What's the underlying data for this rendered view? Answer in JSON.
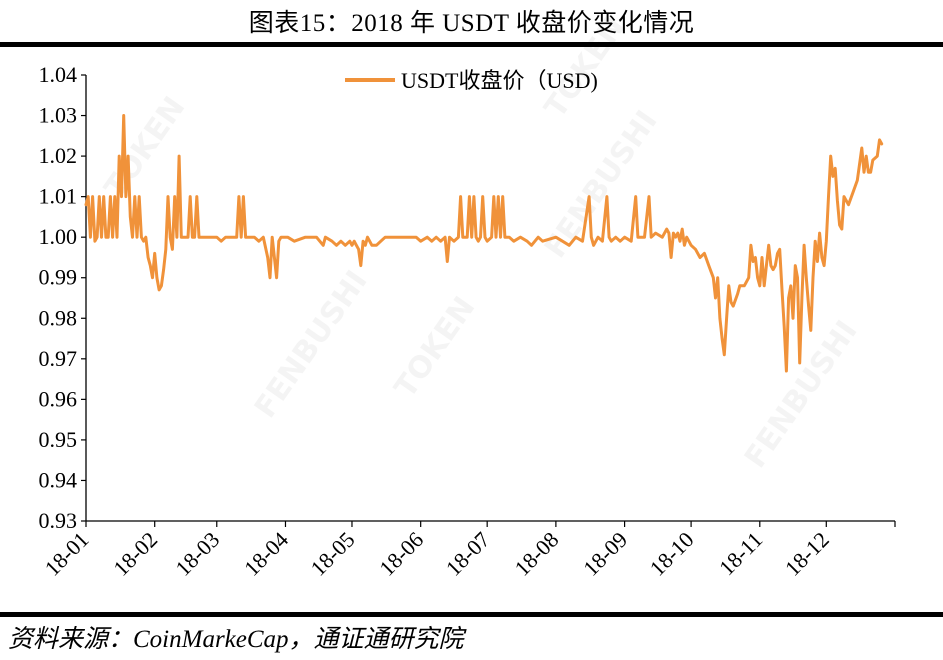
{
  "page": {
    "title": "图表15：2018 年 USDT 收盘价变化情况",
    "source": "资料来源：CoinMarkeCap，通证通研究院"
  },
  "chart_data": {
    "type": "line",
    "title": "图表15：2018 年 USDT 收盘价变化情况",
    "xlabel": "",
    "ylabel": "",
    "x_tick_labels": [
      "18-01",
      "18-02",
      "18-03",
      "18-04",
      "18-05",
      "18-06",
      "18-07",
      "18-08",
      "18-09",
      "18-10",
      "18-11",
      "18-12"
    ],
    "y_tick_labels": [
      "0.93",
      "0.94",
      "0.95",
      "0.96",
      "0.97",
      "0.98",
      "0.99",
      "1.00",
      "1.01",
      "1.02",
      "1.03",
      "1.04"
    ],
    "ylim": [
      0.93,
      1.04
    ],
    "xlim": [
      "2018-01-01",
      "2018-12-31"
    ],
    "grid": false,
    "legend": "top-center",
    "colors": {
      "series": "#F0923A"
    },
    "series": [
      {
        "name": "USDT收盘价（USD)",
        "points": [
          [
            "2018-01-01",
            1.008
          ],
          [
            "2018-01-02",
            1.01
          ],
          [
            "2018-01-03",
            1.0
          ],
          [
            "2018-01-04",
            1.01
          ],
          [
            "2018-01-05",
            0.999
          ],
          [
            "2018-01-06",
            1.0
          ],
          [
            "2018-01-07",
            1.01
          ],
          [
            "2018-01-08",
            1.0
          ],
          [
            "2018-01-09",
            1.01
          ],
          [
            "2018-01-10",
            1.0
          ],
          [
            "2018-01-11",
            1.0
          ],
          [
            "2018-01-12",
            1.01
          ],
          [
            "2018-01-13",
            1.0
          ],
          [
            "2018-01-14",
            1.01
          ],
          [
            "2018-01-15",
            1.0
          ],
          [
            "2018-01-16",
            1.02
          ],
          [
            "2018-01-17",
            1.01
          ],
          [
            "2018-01-18",
            1.03
          ],
          [
            "2018-01-19",
            1.01
          ],
          [
            "2018-01-20",
            1.02
          ],
          [
            "2018-01-21",
            1.005
          ],
          [
            "2018-01-22",
            1.0
          ],
          [
            "2018-01-23",
            1.01
          ],
          [
            "2018-01-24",
            1.0
          ],
          [
            "2018-01-25",
            1.01
          ],
          [
            "2018-01-26",
            1.0
          ],
          [
            "2018-01-27",
            0.999
          ],
          [
            "2018-01-28",
            1.0
          ],
          [
            "2018-01-29",
            0.995
          ],
          [
            "2018-01-30",
            0.993
          ],
          [
            "2018-01-31",
            0.99
          ],
          [
            "2018-02-01",
            0.996
          ],
          [
            "2018-02-02",
            0.99
          ],
          [
            "2018-02-03",
            0.987
          ],
          [
            "2018-02-04",
            0.988
          ],
          [
            "2018-02-05",
            0.992
          ],
          [
            "2018-02-06",
            0.997
          ],
          [
            "2018-02-07",
            1.01
          ],
          [
            "2018-02-08",
            1.0
          ],
          [
            "2018-02-09",
            0.997
          ],
          [
            "2018-02-10",
            1.01
          ],
          [
            "2018-02-11",
            1.0
          ],
          [
            "2018-02-12",
            1.02
          ],
          [
            "2018-02-13",
            1.0
          ],
          [
            "2018-02-14",
            1.0
          ],
          [
            "2018-02-15",
            1.0
          ],
          [
            "2018-02-16",
            1.0
          ],
          [
            "2018-02-17",
            1.01
          ],
          [
            "2018-02-18",
            1.0
          ],
          [
            "2018-02-19",
            1.0
          ],
          [
            "2018-02-20",
            1.01
          ],
          [
            "2018-02-21",
            1.0
          ],
          [
            "2018-02-22",
            1.0
          ],
          [
            "2018-02-25",
            1.0
          ],
          [
            "2018-03-01",
            1.0
          ],
          [
            "2018-03-03",
            0.999
          ],
          [
            "2018-03-05",
            1.0
          ],
          [
            "2018-03-08",
            1.0
          ],
          [
            "2018-03-10",
            1.0
          ],
          [
            "2018-03-11",
            1.01
          ],
          [
            "2018-03-12",
            1.0
          ],
          [
            "2018-03-13",
            1.01
          ],
          [
            "2018-03-14",
            1.0
          ],
          [
            "2018-03-15",
            1.0
          ],
          [
            "2018-03-18",
            1.0
          ],
          [
            "2018-03-20",
            0.999
          ],
          [
            "2018-03-22",
            1.0
          ],
          [
            "2018-03-24",
            0.995
          ],
          [
            "2018-03-25",
            0.99
          ],
          [
            "2018-03-26",
            1.0
          ],
          [
            "2018-03-27",
            0.995
          ],
          [
            "2018-03-28",
            0.99
          ],
          [
            "2018-03-29",
            0.999
          ],
          [
            "2018-03-30",
            1.0
          ],
          [
            "2018-04-02",
            1.0
          ],
          [
            "2018-04-05",
            0.999
          ],
          [
            "2018-04-10",
            1.0
          ],
          [
            "2018-04-15",
            1.0
          ],
          [
            "2018-04-18",
            0.998
          ],
          [
            "2018-04-19",
            1.0
          ],
          [
            "2018-04-22",
            0.999
          ],
          [
            "2018-04-24",
            0.998
          ],
          [
            "2018-04-26",
            0.999
          ],
          [
            "2018-04-28",
            0.998
          ],
          [
            "2018-04-30",
            0.999
          ],
          [
            "2018-05-01",
            0.998
          ],
          [
            "2018-05-02",
            0.999
          ],
          [
            "2018-05-03",
            0.998
          ],
          [
            "2018-05-04",
            0.997
          ],
          [
            "2018-05-05",
            0.993
          ],
          [
            "2018-05-06",
            0.999
          ],
          [
            "2018-05-07",
            0.998
          ],
          [
            "2018-05-08",
            1.0
          ],
          [
            "2018-05-10",
            0.998
          ],
          [
            "2018-05-12",
            0.998
          ],
          [
            "2018-05-14",
            0.999
          ],
          [
            "2018-05-16",
            1.0
          ],
          [
            "2018-05-20",
            1.0
          ],
          [
            "2018-05-25",
            1.0
          ],
          [
            "2018-05-30",
            1.0
          ],
          [
            "2018-06-01",
            0.999
          ],
          [
            "2018-06-04",
            1.0
          ],
          [
            "2018-06-06",
            0.999
          ],
          [
            "2018-06-08",
            1.0
          ],
          [
            "2018-06-10",
            0.999
          ],
          [
            "2018-06-12",
            1.0
          ],
          [
            "2018-06-13",
            0.994
          ],
          [
            "2018-06-14",
            1.0
          ],
          [
            "2018-06-16",
            0.999
          ],
          [
            "2018-06-18",
            1.0
          ],
          [
            "2018-06-19",
            1.01
          ],
          [
            "2018-06-20",
            1.0
          ],
          [
            "2018-06-22",
            1.0
          ],
          [
            "2018-06-23",
            1.01
          ],
          [
            "2018-06-24",
            1.0
          ],
          [
            "2018-06-25",
            1.01
          ],
          [
            "2018-06-26",
            1.0
          ],
          [
            "2018-06-27",
            0.999
          ],
          [
            "2018-06-28",
            1.0
          ],
          [
            "2018-06-29",
            1.01
          ],
          [
            "2018-06-30",
            1.0
          ],
          [
            "2018-07-01",
            0.999
          ],
          [
            "2018-07-03",
            1.0
          ],
          [
            "2018-07-04",
            1.01
          ],
          [
            "2018-07-05",
            1.0
          ],
          [
            "2018-07-06",
            1.01
          ],
          [
            "2018-07-07",
            1.0
          ],
          [
            "2018-07-08",
            1.01
          ],
          [
            "2018-07-09",
            1.0
          ],
          [
            "2018-07-11",
            1.0
          ],
          [
            "2018-07-13",
            0.999
          ],
          [
            "2018-07-16",
            1.0
          ],
          [
            "2018-07-19",
            0.999
          ],
          [
            "2018-07-21",
            0.998
          ],
          [
            "2018-07-24",
            1.0
          ],
          [
            "2018-07-26",
            0.999
          ],
          [
            "2018-08-01",
            1.0
          ],
          [
            "2018-08-04",
            0.999
          ],
          [
            "2018-08-07",
            0.998
          ],
          [
            "2018-08-10",
            1.0
          ],
          [
            "2018-08-13",
            0.999
          ],
          [
            "2018-08-16",
            1.01
          ],
          [
            "2018-08-17",
            1.0
          ],
          [
            "2018-08-18",
            0.998
          ],
          [
            "2018-08-20",
            1.0
          ],
          [
            "2018-08-22",
            0.999
          ],
          [
            "2018-08-24",
            1.01
          ],
          [
            "2018-08-25",
            1.0
          ],
          [
            "2018-08-26",
            0.999
          ],
          [
            "2018-08-28",
            1.0
          ],
          [
            "2018-08-30",
            0.999
          ],
          [
            "2018-09-01",
            1.0
          ],
          [
            "2018-09-04",
            0.999
          ],
          [
            "2018-09-06",
            1.01
          ],
          [
            "2018-09-07",
            1.0
          ],
          [
            "2018-09-10",
            1.0
          ],
          [
            "2018-09-12",
            1.01
          ],
          [
            "2018-09-13",
            1.0
          ],
          [
            "2018-09-15",
            1.001
          ],
          [
            "2018-09-18",
            1.0
          ],
          [
            "2018-09-20",
            1.002
          ],
          [
            "2018-09-21",
            1.001
          ],
          [
            "2018-09-22",
            0.995
          ],
          [
            "2018-09-23",
            1.001
          ],
          [
            "2018-09-24",
            1.0
          ],
          [
            "2018-09-25",
            1.001
          ],
          [
            "2018-09-26",
            0.999
          ],
          [
            "2018-09-27",
            1.002
          ],
          [
            "2018-09-28",
            0.998
          ],
          [
            "2018-09-29",
            1.0
          ],
          [
            "2018-09-30",
            0.999
          ],
          [
            "2018-10-01",
            0.998
          ],
          [
            "2018-10-03",
            0.997
          ],
          [
            "2018-10-05",
            0.995
          ],
          [
            "2018-10-07",
            0.996
          ],
          [
            "2018-10-09",
            0.993
          ],
          [
            "2018-10-11",
            0.99
          ],
          [
            "2018-10-12",
            0.985
          ],
          [
            "2018-10-13",
            0.99
          ],
          [
            "2018-10-14",
            0.98
          ],
          [
            "2018-10-15",
            0.975
          ],
          [
            "2018-10-16",
            0.971
          ],
          [
            "2018-10-17",
            0.98
          ],
          [
            "2018-10-18",
            0.988
          ],
          [
            "2018-10-19",
            0.984
          ],
          [
            "2018-10-20",
            0.983
          ],
          [
            "2018-10-22",
            0.986
          ],
          [
            "2018-10-23",
            0.988
          ],
          [
            "2018-10-25",
            0.988
          ],
          [
            "2018-10-27",
            0.99
          ],
          [
            "2018-10-28",
            0.998
          ],
          [
            "2018-10-29",
            0.994
          ],
          [
            "2018-10-30",
            0.995
          ],
          [
            "2018-10-31",
            0.99
          ],
          [
            "2018-11-01",
            0.988
          ],
          [
            "2018-11-02",
            0.995
          ],
          [
            "2018-11-03",
            0.988
          ],
          [
            "2018-11-04",
            0.993
          ],
          [
            "2018-11-05",
            0.998
          ],
          [
            "2018-11-06",
            0.993
          ],
          [
            "2018-11-07",
            0.992
          ],
          [
            "2018-11-08",
            0.993
          ],
          [
            "2018-11-09",
            0.996
          ],
          [
            "2018-11-10",
            0.997
          ],
          [
            "2018-11-11",
            0.987
          ],
          [
            "2018-11-12",
            0.978
          ],
          [
            "2018-11-13",
            0.967
          ],
          [
            "2018-11-14",
            0.985
          ],
          [
            "2018-11-15",
            0.988
          ],
          [
            "2018-11-16",
            0.98
          ],
          [
            "2018-11-17",
            0.993
          ],
          [
            "2018-11-18",
            0.99
          ],
          [
            "2018-11-19",
            0.969
          ],
          [
            "2018-11-20",
            0.985
          ],
          [
            "2018-11-21",
            0.998
          ],
          [
            "2018-11-22",
            0.99
          ],
          [
            "2018-11-23",
            0.983
          ],
          [
            "2018-11-24",
            0.977
          ],
          [
            "2018-11-25",
            0.99
          ],
          [
            "2018-11-26",
            0.999
          ],
          [
            "2018-11-27",
            0.994
          ],
          [
            "2018-11-28",
            1.001
          ],
          [
            "2018-11-29",
            0.995
          ],
          [
            "2018-11-30",
            0.993
          ],
          [
            "2018-12-01",
            0.999
          ],
          [
            "2018-12-02",
            1.01
          ],
          [
            "2018-12-03",
            1.02
          ],
          [
            "2018-12-04",
            1.015
          ],
          [
            "2018-12-05",
            1.017
          ],
          [
            "2018-12-06",
            1.009
          ],
          [
            "2018-12-07",
            1.003
          ],
          [
            "2018-12-08",
            1.002
          ],
          [
            "2018-12-09",
            1.01
          ],
          [
            "2018-12-11",
            1.008
          ],
          [
            "2018-12-13",
            1.011
          ],
          [
            "2018-12-15",
            1.014
          ],
          [
            "2018-12-17",
            1.022
          ],
          [
            "2018-12-18",
            1.016
          ],
          [
            "2018-12-19",
            1.02
          ],
          [
            "2018-12-20",
            1.016
          ],
          [
            "2018-12-21",
            1.016
          ],
          [
            "2018-12-22",
            1.019
          ],
          [
            "2018-12-24",
            1.02
          ],
          [
            "2018-12-25",
            1.024
          ],
          [
            "2018-12-26",
            1.023
          ]
        ]
      }
    ]
  }
}
